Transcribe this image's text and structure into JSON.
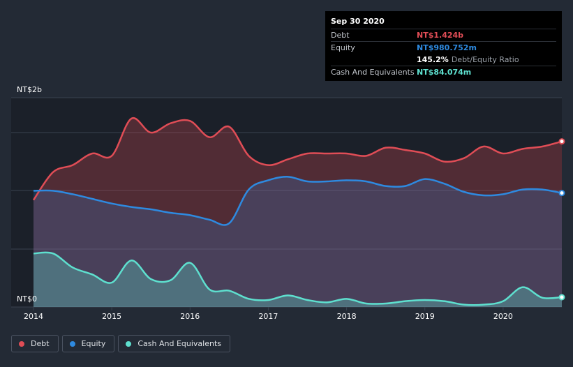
{
  "tooltip": {
    "date": "Sep 30 2020",
    "debt_label": "Debt",
    "debt_value": "NT$1.424b",
    "equity_label": "Equity",
    "equity_value": "NT$980.752m",
    "ratio_value": "145.2%",
    "ratio_label": "Debt/Equity Ratio",
    "cash_label": "Cash And Equivalents",
    "cash_value": "NT$84.074m"
  },
  "legend": {
    "debt": "Debt",
    "equity": "Equity",
    "cash": "Cash And Equivalents"
  },
  "colors": {
    "debt": "#e04d56",
    "equity": "#2e8ae0",
    "cash": "#5ee0cf",
    "background": "#232a35"
  },
  "chart_data": {
    "type": "area",
    "title": "",
    "xlabel": "",
    "ylabel": "",
    "y_top_label": "NT$2b",
    "y_bottom_label": "NT$0",
    "ylim": [
      0,
      1.8
    ],
    "xlim": [
      2014.0,
      2020.75
    ],
    "x_ticks": [
      "2014",
      "2015",
      "2016",
      "2017",
      "2018",
      "2019",
      "2020"
    ],
    "series": [
      {
        "name": "Debt",
        "x": [
          2014.0,
          2014.25,
          2014.5,
          2014.75,
          2015.0,
          2015.25,
          2015.5,
          2015.75,
          2016.0,
          2016.25,
          2016.5,
          2016.75,
          2017.0,
          2017.25,
          2017.5,
          2017.75,
          2018.0,
          2018.25,
          2018.5,
          2018.75,
          2019.0,
          2019.25,
          2019.5,
          2019.75,
          2020.0,
          2020.25,
          2020.5,
          2020.75
        ],
        "values": [
          0.92,
          1.16,
          1.22,
          1.32,
          1.3,
          1.62,
          1.5,
          1.58,
          1.6,
          1.46,
          1.55,
          1.3,
          1.22,
          1.27,
          1.32,
          1.32,
          1.32,
          1.3,
          1.37,
          1.35,
          1.32,
          1.25,
          1.28,
          1.38,
          1.32,
          1.36,
          1.38,
          1.424
        ]
      },
      {
        "name": "Equity",
        "x": [
          2014.0,
          2014.25,
          2014.5,
          2014.75,
          2015.0,
          2015.25,
          2015.5,
          2015.75,
          2016.0,
          2016.25,
          2016.5,
          2016.75,
          2017.0,
          2017.25,
          2017.5,
          2017.75,
          2018.0,
          2018.25,
          2018.5,
          2018.75,
          2019.0,
          2019.25,
          2019.5,
          2019.75,
          2020.0,
          2020.25,
          2020.5,
          2020.75
        ],
        "values": [
          1.0,
          1.0,
          0.97,
          0.93,
          0.89,
          0.86,
          0.84,
          0.81,
          0.79,
          0.75,
          0.72,
          1.01,
          1.09,
          1.12,
          1.08,
          1.08,
          1.09,
          1.08,
          1.04,
          1.04,
          1.1,
          1.06,
          0.99,
          0.96,
          0.97,
          1.01,
          1.01,
          0.98
        ]
      },
      {
        "name": "Cash And Equivalents",
        "x": [
          2014.0,
          2014.25,
          2014.5,
          2014.75,
          2015.0,
          2015.25,
          2015.5,
          2015.75,
          2016.0,
          2016.25,
          2016.5,
          2016.75,
          2017.0,
          2017.25,
          2017.5,
          2017.75,
          2018.0,
          2018.25,
          2018.5,
          2018.75,
          2019.0,
          2019.25,
          2019.5,
          2019.75,
          2020.0,
          2020.25,
          2020.5,
          2020.75
        ],
        "values": [
          0.46,
          0.46,
          0.34,
          0.28,
          0.21,
          0.4,
          0.24,
          0.23,
          0.38,
          0.15,
          0.14,
          0.07,
          0.06,
          0.1,
          0.06,
          0.04,
          0.07,
          0.03,
          0.03,
          0.05,
          0.06,
          0.05,
          0.02,
          0.02,
          0.05,
          0.17,
          0.08,
          0.084
        ]
      }
    ]
  }
}
